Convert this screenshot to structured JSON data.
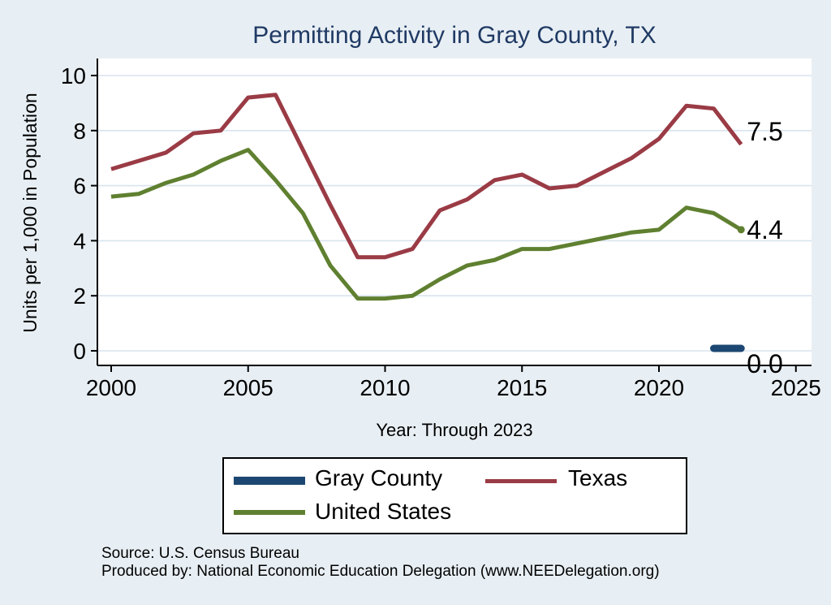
{
  "title": "Permitting Activity in Gray County, TX",
  "chart_data": {
    "type": "line",
    "title": "Permitting Activity in Gray County, TX",
    "xlabel": "Year: Through 2023",
    "ylabel": "Units per 1,000 in Population",
    "x_ticks": [
      2000,
      2005,
      2010,
      2015,
      2020,
      2025
    ],
    "y_ticks": [
      0,
      2,
      4,
      6,
      8,
      10
    ],
    "xlim": [
      2000,
      2025
    ],
    "ylim": [
      0,
      10
    ],
    "grid": "horizontal",
    "legend_position": "bottom",
    "series": [
      {
        "name": "Gray County",
        "color": "#1c4772",
        "width": 9,
        "x": [
          2022,
          2023
        ],
        "values": [
          0.0,
          0.0
        ],
        "end_label": "0.0",
        "end_marker": false
      },
      {
        "name": "Texas",
        "color": "#9a3b45",
        "width": 5,
        "x": [
          2000,
          2001,
          2002,
          2003,
          2004,
          2005,
          2006,
          2007,
          2008,
          2009,
          2010,
          2011,
          2012,
          2013,
          2014,
          2015,
          2016,
          2017,
          2018,
          2019,
          2020,
          2021,
          2022,
          2023
        ],
        "values": [
          6.6,
          6.9,
          7.2,
          7.9,
          8.0,
          9.2,
          9.3,
          7.3,
          5.3,
          3.4,
          3.4,
          3.7,
          5.1,
          5.5,
          6.2,
          6.4,
          5.9,
          6.0,
          6.5,
          7.0,
          7.7,
          8.9,
          8.8,
          7.5
        ],
        "end_label": "7.5",
        "end_marker": false
      },
      {
        "name": "United States",
        "color": "#5f8030",
        "width": 5,
        "x": [
          2000,
          2001,
          2002,
          2003,
          2004,
          2005,
          2006,
          2007,
          2008,
          2009,
          2010,
          2011,
          2012,
          2013,
          2014,
          2015,
          2016,
          2017,
          2018,
          2019,
          2020,
          2021,
          2022,
          2023
        ],
        "values": [
          5.6,
          5.7,
          6.1,
          6.4,
          6.9,
          7.3,
          6.2,
          5.0,
          3.1,
          1.9,
          1.9,
          2.0,
          2.6,
          3.1,
          3.3,
          3.7,
          3.7,
          3.9,
          4.1,
          4.3,
          4.4,
          5.2,
          5.0,
          4.4
        ],
        "end_label": "4.4",
        "end_marker": true
      }
    ]
  },
  "footer": {
    "source": "Source: U.S. Census Bureau",
    "produced_by": "Produced by: National Economic Education Delegation (www.NEEDelegation.org)"
  }
}
